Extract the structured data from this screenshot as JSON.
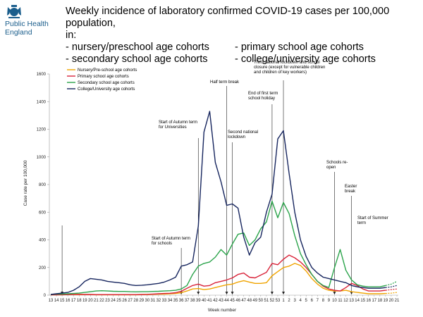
{
  "header": {
    "org_line1": "Public Health",
    "org_line2": "England",
    "title_line1": "Weekly incidence of laboratory confirmed COVID-19 cases per 100,000 population,",
    "title_line2": "in:",
    "items": [
      "- nursery/preschool age cohorts",
      "- primary school age cohorts",
      "- secondary school age cohorts",
      "- college/university age cohorts"
    ]
  },
  "colors": {
    "nursery": "#f0a400",
    "primary": "#d9243a",
    "secondary": "#2aa34a",
    "college": "#16255e",
    "crest": "#1b5e8c"
  },
  "chart_data": {
    "type": "line",
    "xlabel": "Week number",
    "ylabel": "Case rate per 100,000",
    "ylim": [
      0,
      1600
    ],
    "yticks": [
      0,
      200,
      400,
      600,
      800,
      1000,
      1200,
      1400,
      1600
    ],
    "x": [
      "13",
      "14",
      "15",
      "16",
      "17",
      "18",
      "19",
      "20",
      "21",
      "22",
      "23",
      "24",
      "25",
      "26",
      "27",
      "28",
      "29",
      "30",
      "31",
      "32",
      "33",
      "34",
      "35",
      "36",
      "37",
      "38",
      "39",
      "40",
      "41",
      "42",
      "43",
      "44",
      "45",
      "46",
      "47",
      "48",
      "49",
      "50",
      "51",
      "52",
      "53",
      "1",
      "2",
      "3",
      "4",
      "5",
      "6",
      "7",
      "8",
      "9",
      "10",
      "11",
      "12",
      "13",
      "14",
      "15",
      "16",
      "17",
      "18",
      "19",
      "20",
      "21"
    ],
    "legend_position": "top-left",
    "series": [
      {
        "name": "Nursery/Pre-school age cohorts",
        "key": "nursery",
        "values": [
          2,
          3,
          3,
          4,
          4,
          5,
          4,
          4,
          3,
          3,
          3,
          3,
          3,
          3,
          3,
          3,
          4,
          5,
          6,
          7,
          8,
          10,
          12,
          18,
          30,
          45,
          48,
          40,
          45,
          55,
          65,
          75,
          80,
          95,
          105,
          95,
          85,
          85,
          90,
          140,
          170,
          200,
          210,
          230,
          215,
          175,
          120,
          80,
          50,
          35,
          30,
          30,
          35,
          25,
          20,
          15,
          10,
          10,
          10,
          12,
          15,
          20
        ]
      },
      {
        "name": "Primary school age cohorts",
        "key": "primary",
        "values": [
          2,
          2,
          3,
          4,
          5,
          6,
          5,
          5,
          4,
          4,
          4,
          4,
          4,
          4,
          4,
          4,
          5,
          6,
          8,
          10,
          12,
          14,
          18,
          28,
          50,
          70,
          80,
          65,
          70,
          90,
          100,
          110,
          125,
          150,
          160,
          130,
          125,
          145,
          165,
          230,
          220,
          260,
          290,
          270,
          240,
          200,
          150,
          100,
          65,
          45,
          35,
          30,
          55,
          85,
          70,
          45,
          30,
          30,
          30,
          35,
          40,
          45
        ]
      },
      {
        "name": "Secondary school age cohorts",
        "key": "secondary",
        "values": [
          5,
          7,
          8,
          10,
          12,
          15,
          20,
          25,
          30,
          32,
          30,
          28,
          27,
          27,
          25,
          24,
          25,
          25,
          27,
          28,
          30,
          32,
          35,
          45,
          70,
          150,
          210,
          230,
          240,
          275,
          330,
          290,
          370,
          440,
          450,
          360,
          400,
          480,
          530,
          680,
          560,
          670,
          590,
          430,
          300,
          220,
          150,
          100,
          70,
          55,
          200,
          330,
          180,
          110,
          75,
          65,
          60,
          60,
          60,
          70,
          80,
          100
        ]
      },
      {
        "name": "College/University age cohorts",
        "key": "college",
        "values": [
          5,
          10,
          15,
          20,
          35,
          60,
          100,
          120,
          115,
          110,
          100,
          95,
          90,
          85,
          75,
          70,
          72,
          75,
          80,
          85,
          95,
          110,
          130,
          210,
          220,
          240,
          500,
          1180,
          1330,
          960,
          820,
          650,
          660,
          630,
          420,
          290,
          380,
          420,
          600,
          730,
          1130,
          1190,
          880,
          600,
          400,
          280,
          200,
          160,
          130,
          120,
          110,
          100,
          90,
          70,
          60,
          55,
          50,
          50,
          50,
          55,
          60,
          70
        ]
      }
    ],
    "annotations": [
      {
        "lines": [
          "Start of Autumn term",
          "for schools"
        ],
        "week": "36"
      },
      {
        "lines": [
          "Start of Autumn term",
          "for Universities"
        ],
        "week": "39"
      },
      {
        "lines": [
          "Half term break"
        ],
        "week": "44"
      },
      {
        "lines": [
          "Second national",
          "lockdown"
        ],
        "week": "45"
      },
      {
        "lines": [
          "End of first term",
          "school holiday"
        ],
        "week": "52"
      },
      {
        "lines": [
          "Third national lockdown and school",
          "closure (except for vulnerable children",
          "and children of key workers)"
        ],
        "week": "1"
      },
      {
        "lines": [
          "Schools re-",
          "open"
        ],
        "week": "10"
      },
      {
        "lines": [
          "Easter",
          "break"
        ],
        "week": "13"
      },
      {
        "lines": [
          "Start of Summer",
          "term"
        ],
        "week": "15"
      }
    ]
  }
}
